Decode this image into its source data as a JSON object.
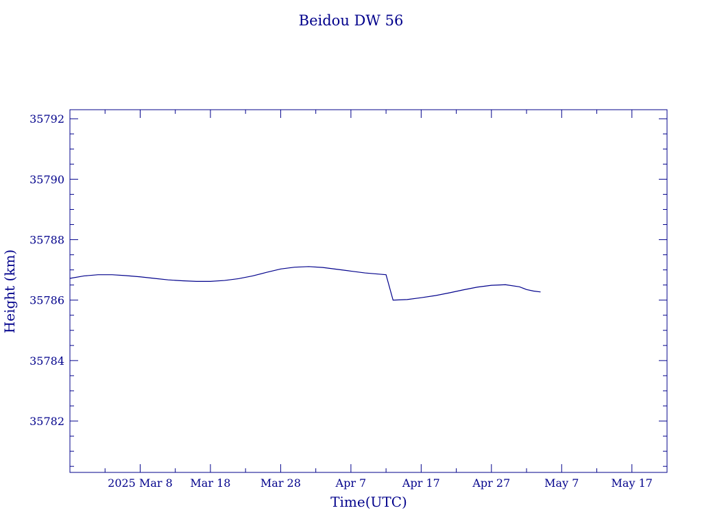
{
  "chart_data": {
    "type": "line",
    "title": "Beidou DW 56",
    "xlabel": "Time(UTC)",
    "ylabel": "Height (km)",
    "color": "#00008b",
    "xlim": [
      "2025-02-26",
      "2025-05-22"
    ],
    "ylim": [
      35780.3,
      35792.3
    ],
    "x_ticks": [
      {
        "date": "2025-03-08",
        "label": "2025 Mar  8"
      },
      {
        "date": "2025-03-18",
        "label": "Mar 18"
      },
      {
        "date": "2025-03-28",
        "label": "Mar 28"
      },
      {
        "date": "2025-04-07",
        "label": "Apr  7"
      },
      {
        "date": "2025-04-17",
        "label": "Apr 17"
      },
      {
        "date": "2025-04-27",
        "label": "Apr 27"
      },
      {
        "date": "2025-05-07",
        "label": "May  7"
      },
      {
        "date": "2025-05-17",
        "label": "May 17"
      }
    ],
    "y_ticks": [
      {
        "value": 35782,
        "label": "35782"
      },
      {
        "value": 35784,
        "label": "35784"
      },
      {
        "value": 35786,
        "label": "35786"
      },
      {
        "value": 35788,
        "label": "35788"
      },
      {
        "value": 35790,
        "label": "35790"
      },
      {
        "value": 35792,
        "label": "35792"
      }
    ],
    "series": [
      {
        "points": [
          [
            "2025-02-26",
            35786.72
          ],
          [
            "2025-02-28",
            35786.8
          ],
          [
            "2025-03-02",
            35786.84
          ],
          [
            "2025-03-04",
            35786.84
          ],
          [
            "2025-03-06",
            35786.81
          ],
          [
            "2025-03-08",
            35786.77
          ],
          [
            "2025-03-10",
            35786.72
          ],
          [
            "2025-03-12",
            35786.67
          ],
          [
            "2025-03-14",
            35786.64
          ],
          [
            "2025-03-16",
            35786.62
          ],
          [
            "2025-03-18",
            35786.62
          ],
          [
            "2025-03-20",
            35786.65
          ],
          [
            "2025-03-22",
            35786.71
          ],
          [
            "2025-03-24",
            35786.8
          ],
          [
            "2025-03-26",
            35786.92
          ],
          [
            "2025-03-28",
            35787.03
          ],
          [
            "2025-03-30",
            35787.09
          ],
          [
            "2025-04-01",
            35787.11
          ],
          [
            "2025-04-03",
            35787.08
          ],
          [
            "2025-04-05",
            35787.02
          ],
          [
            "2025-04-07",
            35786.96
          ],
          [
            "2025-04-09",
            35786.9
          ],
          [
            "2025-04-11",
            35786.86
          ],
          [
            "2025-04-12",
            35786.84
          ],
          [
            "2025-04-13",
            35786.0
          ],
          [
            "2025-04-15",
            35786.02
          ],
          [
            "2025-04-17",
            35786.08
          ],
          [
            "2025-04-19",
            35786.15
          ],
          [
            "2025-04-21",
            35786.24
          ],
          [
            "2025-04-23",
            35786.34
          ],
          [
            "2025-04-25",
            35786.43
          ],
          [
            "2025-04-27",
            35786.49
          ],
          [
            "2025-04-29",
            35786.51
          ],
          [
            "2025-05-01",
            35786.44
          ],
          [
            "2025-05-02",
            35786.35
          ],
          [
            "2025-05-03",
            35786.3
          ],
          [
            "2025-05-04",
            35786.27
          ]
        ]
      }
    ]
  }
}
